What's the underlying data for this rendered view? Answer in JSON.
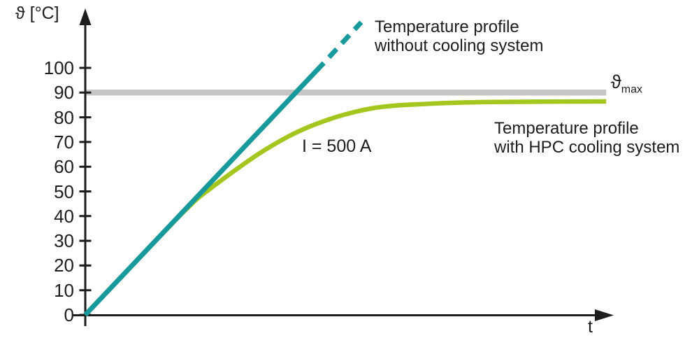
{
  "colors": {
    "background": "#ffffff",
    "axis": "#1d1d1b",
    "text": "#1d1d1b",
    "teal": "#18999c",
    "green": "#a3c71e",
    "gray": "#c6c6c6"
  },
  "chart_data": {
    "type": "line",
    "title": "",
    "xlabel": "t",
    "ylabel": "ϑ [°C]",
    "x_range": [
      0,
      10
    ],
    "y_range": [
      0,
      120
    ],
    "yticks": [
      0,
      10,
      20,
      30,
      40,
      50,
      60,
      70,
      80,
      90,
      100
    ],
    "xticks": [],
    "grid": false,
    "legend_position": "inline-annotations",
    "series": [
      {
        "name": "theta-max-limit",
        "label": "ϑ max",
        "color": "#c6c6c6",
        "width": 8.5,
        "smooth": false,
        "dash": null,
        "points": [
          [
            0,
            90
          ],
          [
            9.87,
            90
          ]
        ]
      },
      {
        "name": "with-hpc-cooling",
        "label": "Temperature profile with HPC cooling system",
        "color": "#a3c71e",
        "width": 6.5,
        "smooth": true,
        "dash": null,
        "points": [
          [
            0,
            0
          ],
          [
            1.0,
            22.5
          ],
          [
            1.9,
            42.5
          ],
          [
            2.36,
            51
          ],
          [
            3.42,
            67
          ],
          [
            4.34,
            77
          ],
          [
            5.4,
            83.5
          ],
          [
            6.54,
            85.5
          ],
          [
            7.7,
            86.2
          ],
          [
            9.87,
            86.4
          ]
        ]
      },
      {
        "name": "without-cooling-solid",
        "label": "Temperature profile without cooling system",
        "color": "#18999c",
        "width": 7,
        "smooth": false,
        "dash": null,
        "points": [
          [
            0,
            0
          ],
          [
            4.52,
            102
          ]
        ]
      },
      {
        "name": "without-cooling-dashed",
        "label": "Temperature profile without cooling system (projection)",
        "color": "#18999c",
        "width": 7,
        "smooth": false,
        "dash": [
          16,
          11
        ],
        "points": [
          [
            4.52,
            102
          ],
          [
            5.23,
            118.5
          ]
        ]
      }
    ],
    "annotations": [
      {
        "id": "no-cooling-label",
        "lines": [
          "Temperature profile",
          "without cooling system"
        ]
      },
      {
        "id": "hpc-label",
        "lines": [
          "Temperature profile",
          "with HPC cooling system"
        ]
      },
      {
        "id": "current-label",
        "text": "I = 500 A"
      },
      {
        "id": "theta-max-label",
        "symbol": "ϑ",
        "subscript": "max"
      }
    ]
  }
}
